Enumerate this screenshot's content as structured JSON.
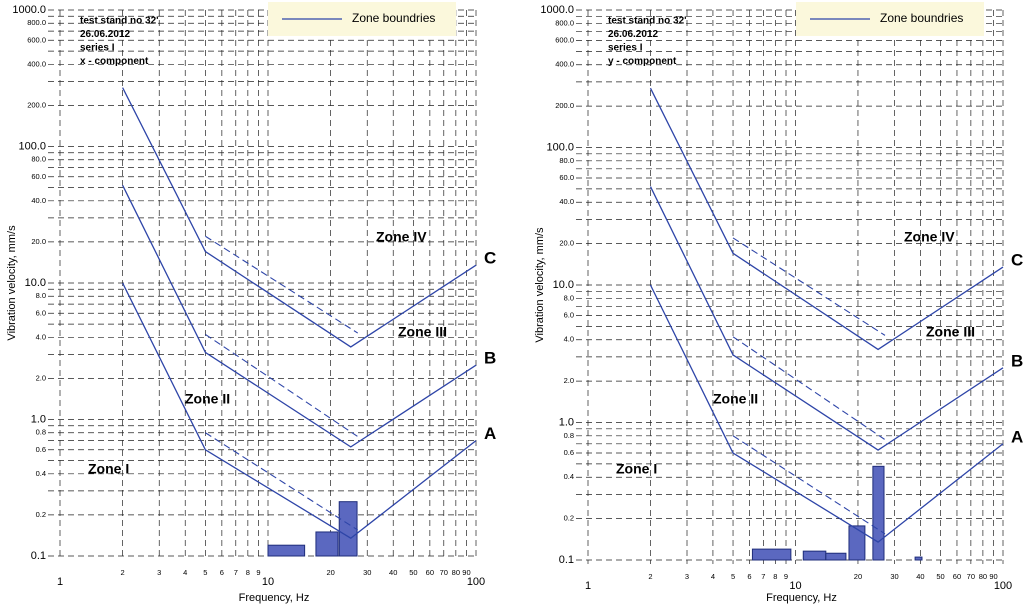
{
  "chart_data": [
    {
      "type": "bar",
      "notes": [
        "test stand no 32'",
        "26.06.2012",
        "series I",
        "x - component"
      ],
      "legend": "Zone boundries",
      "x_label": "Frequency, Hz",
      "y_label": "Vibration velocity, mm/s",
      "log_x": true,
      "log_y": true,
      "grid": true,
      "xlim": [
        1,
        100
      ],
      "ylim": [
        0.1,
        1000
      ],
      "xticks": [
        1,
        2,
        3,
        4,
        5,
        6,
        7,
        8,
        9,
        10,
        20,
        30,
        40,
        50,
        60,
        70,
        80,
        90,
        100
      ],
      "yticks": [
        0.1,
        0.2,
        0.4,
        0.6,
        0.8,
        {
          "value": 1,
          "label": "1.0"
        },
        {
          "value": 2,
          "label": "2.0"
        },
        {
          "value": 4,
          "label": "4.0"
        },
        {
          "value": 6,
          "label": "6.0"
        },
        {
          "value": 8,
          "label": "8.0"
        },
        {
          "value": 10,
          "label": "10.0"
        },
        {
          "value": 20,
          "label": "20.0"
        },
        {
          "value": 40,
          "label": "40.0"
        },
        {
          "value": 60,
          "label": "60.0"
        },
        {
          "value": 80,
          "label": "80.0"
        },
        {
          "value": 100,
          "label": "100.0"
        },
        {
          "value": 200,
          "label": "200.0"
        },
        {
          "value": 400,
          "label": "400.0"
        },
        {
          "value": 600,
          "label": "600.0"
        },
        {
          "value": 800,
          "label": "800.0"
        },
        {
          "value": 1000,
          "label": "1000.0"
        }
      ],
      "minor_yticks": [
        0.3,
        0.5,
        0.7,
        0.9,
        3,
        5,
        7,
        9,
        30,
        50,
        70,
        90,
        300,
        500,
        700,
        900
      ],
      "bars": {
        "color": "#5b68c0",
        "from": [
          10,
          17,
          22
        ],
        "to": [
          15,
          21.7,
          26.8
        ],
        "values": [
          0.12,
          0.15,
          0.25
        ]
      },
      "zone_labels": [
        "Zone I",
        "Zone II",
        "Zone III",
        "Zone IV"
      ],
      "series": [
        {
          "name": "C",
          "color": "#2e45a8",
          "x": [
            2,
            5,
            25,
            100
          ],
          "values": [
            270,
            17,
            3.4,
            13.5
          ],
          "dashed": {
            "x": [
              5,
              27
            ],
            "values": [
              22,
              4.3
            ]
          }
        },
        {
          "name": "B",
          "color": "#2e45a8",
          "x": [
            2,
            5,
            25,
            100
          ],
          "values": [
            52,
            3.1,
            0.63,
            2.5
          ],
          "dashed": {
            "x": [
              5,
              27
            ],
            "values": [
              4.2,
              0.75
            ]
          }
        },
        {
          "name": "A",
          "color": "#2e45a8",
          "x": [
            2,
            5,
            25,
            100
          ],
          "values": [
            10,
            0.6,
            0.135,
            0.7
          ],
          "dashed": {
            "x": [
              5,
              27
            ],
            "values": [
              0.8,
              0.155
            ]
          }
        }
      ]
    },
    {
      "type": "bar",
      "notes": [
        "test stand no 32'",
        "26.06.2012",
        "series I",
        "y - component"
      ],
      "legend": "Zone boundries",
      "x_label": "Frequency, Hz",
      "y_label": "Vibration velocity, mm/s",
      "log_x": true,
      "log_y": true,
      "grid": true,
      "xlim": [
        1,
        100
      ],
      "ylim": [
        0.1,
        1000
      ],
      "xticks": [
        1,
        2,
        3,
        4,
        5,
        6,
        7,
        8,
        9,
        10,
        20,
        30,
        40,
        50,
        60,
        70,
        80,
        90,
        100
      ],
      "yticks": [
        0.1,
        0.2,
        0.4,
        0.6,
        0.8,
        {
          "value": 1,
          "label": "1.0"
        },
        {
          "value": 2,
          "label": "2.0"
        },
        {
          "value": 4,
          "label": "4.0"
        },
        {
          "value": 6,
          "label": "6.0"
        },
        {
          "value": 8,
          "label": "8.0"
        },
        {
          "value": 10,
          "label": "10.0"
        },
        {
          "value": 20,
          "label": "20.0"
        },
        {
          "value": 40,
          "label": "40.0"
        },
        {
          "value": 60,
          "label": "60.0"
        },
        {
          "value": 80,
          "label": "80.0"
        },
        {
          "value": 100,
          "label": "100.0"
        },
        {
          "value": 200,
          "label": "200.0"
        },
        {
          "value": 400,
          "label": "400.0"
        },
        {
          "value": 600,
          "label": "600.0"
        },
        {
          "value": 800,
          "label": "800.0"
        },
        {
          "value": 1000,
          "label": "1000.0"
        }
      ],
      "minor_yticks": [
        0.3,
        0.5,
        0.7,
        0.9,
        3,
        5,
        7,
        9,
        30,
        50,
        70,
        90,
        300,
        500,
        700,
        900
      ],
      "bars": {
        "color": "#5b68c0",
        "from": [
          6.2,
          10.9,
          14,
          18.1,
          23.6,
          37.7
        ],
        "to": [
          9.5,
          14,
          17.5,
          21.6,
          26.7,
          40.7
        ],
        "values": [
          0.12,
          0.116,
          0.112,
          0.177,
          0.48,
          0.105
        ]
      },
      "zone_labels": [
        "Zone I",
        "Zone II",
        "Zone III",
        "Zone IV"
      ],
      "series": [
        {
          "name": "C",
          "color": "#2e45a8",
          "x": [
            2,
            5,
            25,
            100
          ],
          "values": [
            270,
            17,
            3.4,
            13.5
          ],
          "dashed": {
            "x": [
              5,
              27
            ],
            "values": [
              22,
              4.3
            ]
          }
        },
        {
          "name": "B",
          "color": "#2e45a8",
          "x": [
            2,
            5,
            25,
            100
          ],
          "values": [
            52,
            3.1,
            0.63,
            2.5
          ],
          "dashed": {
            "x": [
              5,
              27
            ],
            "values": [
              4.2,
              0.75
            ]
          }
        },
        {
          "name": "A",
          "color": "#2e45a8",
          "x": [
            2,
            5,
            25,
            100
          ],
          "values": [
            10,
            0.6,
            0.135,
            0.7
          ],
          "dashed": {
            "x": [
              5,
              27
            ],
            "values": [
              0.8,
              0.155
            ]
          }
        }
      ]
    }
  ]
}
